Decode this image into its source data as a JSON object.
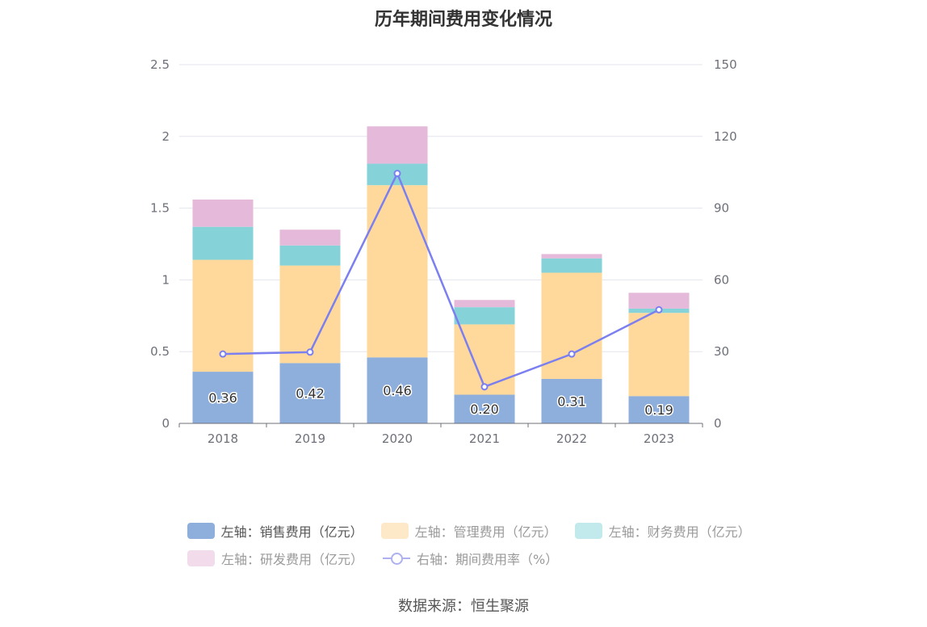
{
  "chart_data": {
    "type": "bar",
    "title": "历年期间费用变化情况",
    "categories": [
      "2018",
      "2019",
      "2020",
      "2021",
      "2022",
      "2023"
    ],
    "series": [
      {
        "name": "左轴：销售费用（亿元）",
        "axis": "left",
        "stack": true,
        "color": "#8eaedb",
        "values": [
          0.36,
          0.42,
          0.46,
          0.2,
          0.31,
          0.19
        ]
      },
      {
        "name": "左轴：管理费用（亿元）",
        "axis": "left",
        "stack": true,
        "color": "#fed99b",
        "values": [
          0.78,
          0.68,
          1.2,
          0.49,
          0.74,
          0.58
        ]
      },
      {
        "name": "左轴：财务费用（亿元）",
        "axis": "left",
        "stack": true,
        "color": "#85d3d9",
        "values": [
          0.23,
          0.14,
          0.15,
          0.12,
          0.1,
          0.03
        ]
      },
      {
        "name": "左轴：研发费用（亿元）",
        "axis": "left",
        "stack": true,
        "color": "#e5b9da",
        "values": [
          0.19,
          0.11,
          0.26,
          0.05,
          0.03,
          0.11
        ]
      },
      {
        "name": "右轴：期间费用率（%）",
        "axis": "right",
        "type": "line",
        "color": "#7b7ff0",
        "values": [
          29,
          29.8,
          104.5,
          15.3,
          29,
          47.5
        ]
      }
    ],
    "left_axis": {
      "ticks": [
        "0",
        "0.5",
        "1",
        "1.5",
        "2",
        "2.5"
      ],
      "ylim": [
        0,
        2.5
      ]
    },
    "right_axis": {
      "ticks": [
        "0",
        "30",
        "60",
        "90",
        "120",
        "150"
      ],
      "ylim": [
        0,
        150
      ]
    },
    "bar_labels": [
      "0.36",
      "0.42",
      "0.46",
      "0.20",
      "0.31",
      "0.19"
    ],
    "grid": true,
    "legend_position": "bottom"
  },
  "legend": {
    "items": [
      {
        "label": "左轴：销售费用（亿元）",
        "color": "#8eaedb",
        "kind": "swatch",
        "dim": false
      },
      {
        "label": "左轴：管理费用（亿元）",
        "color": "#fde9c8",
        "kind": "swatch",
        "dim": true
      },
      {
        "label": "左轴：财务费用（亿元）",
        "color": "#c2e9ec",
        "kind": "swatch",
        "dim": true
      },
      {
        "label": "左轴：研发费用（亿元）",
        "color": "#f2dcec",
        "kind": "swatch",
        "dim": true
      },
      {
        "label": "右轴：期间费用率（%）",
        "color": "#aeb0ef",
        "kind": "line",
        "dim": true
      }
    ]
  },
  "source": "数据来源：恒生聚源"
}
